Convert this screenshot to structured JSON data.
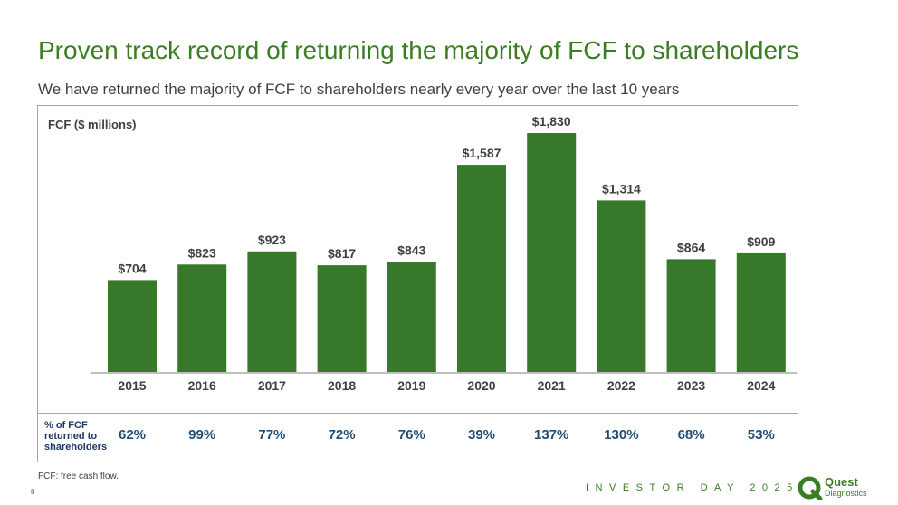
{
  "slide": {
    "title": "Proven track record of returning the majority of FCF to shareholders",
    "subtitle": "We have returned the majority of FCF to shareholders nearly every year over the last 10 years",
    "footnote": "FCF: free cash flow.",
    "page_number": "8",
    "event": "INVESTOR DAY 2025",
    "logo_name": "Quest",
    "logo_sub": "Diagnostics"
  },
  "pct_row": {
    "label_lines": [
      "% of FCF",
      "returned to",
      "shareholders"
    ],
    "values": [
      "62%",
      "99%",
      "77%",
      "72%",
      "76%",
      "39%",
      "137%",
      "130%",
      "68%",
      "53%"
    ]
  },
  "chart_data": {
    "type": "bar",
    "ylabel": "FCF ($ millions)",
    "categories": [
      "2015",
      "2016",
      "2017",
      "2018",
      "2019",
      "2020",
      "2021",
      "2022",
      "2023",
      "2024"
    ],
    "values": [
      704,
      823,
      923,
      817,
      843,
      1587,
      1830,
      1314,
      864,
      909
    ],
    "data_labels": [
      "$704",
      "$823",
      "$923",
      "$817",
      "$843",
      "$1,587",
      "$1,830",
      "$1,314",
      "$864",
      "$909"
    ],
    "ylim": [
      0,
      2000
    ],
    "bar_color": "#38782a",
    "grid": false
  },
  "colors": {
    "brand_green": "#3b7d23",
    "bar_green": "#38782a",
    "pct_blue": "#1f4e79"
  },
  "icons": {
    "logo": "quest-diagnostics-logo-icon"
  }
}
